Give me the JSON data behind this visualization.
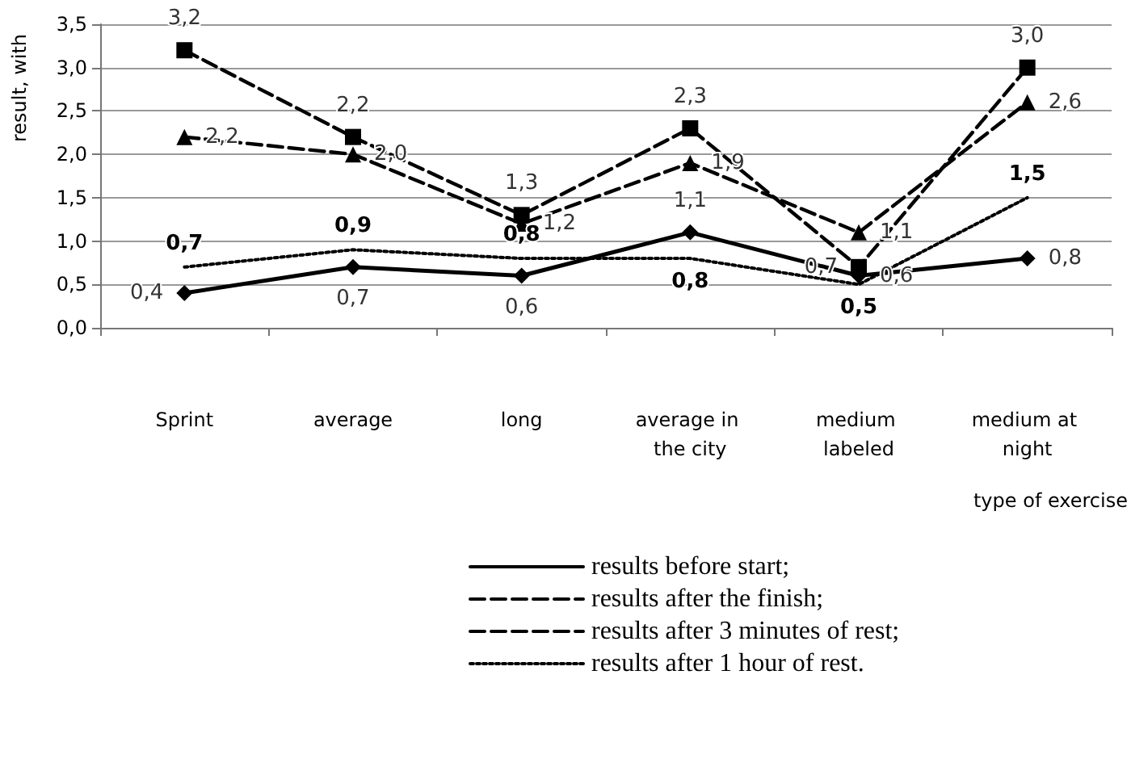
{
  "chart_data": {
    "type": "line",
    "xlabel": "type of exercise",
    "ylabel": "result, with",
    "categories": [
      "Sprint",
      "average",
      "long",
      "average in the city",
      "medium labeled",
      "medium at night"
    ],
    "series": [
      {
        "name": "results before start;",
        "color": "#000000",
        "values": [
          0.4,
          0.7,
          0.6,
          1.1,
          0.6,
          0.8
        ],
        "marker": "diamond",
        "line_style": "solid",
        "value_labels": [
          "0,4",
          "0,7",
          "0,6",
          "1,1",
          "0,6",
          "0,8"
        ]
      },
      {
        "name": "results after the finish;",
        "color": "#000000",
        "values": [
          3.2,
          2.2,
          1.3,
          2.3,
          0.7,
          3.0
        ],
        "marker": "square",
        "line_style": "dashed",
        "value_labels": [
          "3,2",
          "2,2",
          "1,3",
          "2,3",
          "0,7",
          "3,0"
        ]
      },
      {
        "name": "results after 3 minutes of rest;",
        "color": "#000000",
        "values": [
          2.2,
          2.0,
          1.2,
          1.9,
          1.1,
          2.6
        ],
        "marker": "triangle",
        "line_style": "dashed",
        "value_labels": [
          "2,2",
          "2,0",
          "1,2",
          "1,9",
          "1,1",
          "2,6"
        ]
      },
      {
        "name": "results after 1 hour of rest.",
        "color": "#000000",
        "values": [
          0.7,
          0.9,
          0.8,
          0.8,
          0.5,
          1.5
        ],
        "marker": "none",
        "line_style": "dotted",
        "value_labels": [
          "0,7",
          "0,9",
          "0,8",
          "0,8",
          "0,5",
          "1,5"
        ]
      }
    ],
    "ylim": [
      0,
      3.5
    ],
    "yticks": [
      {
        "value": 0,
        "label": "0,0"
      },
      {
        "value": 0.5,
        "label": "0,5"
      },
      {
        "value": 1,
        "label": "1,0"
      },
      {
        "value": 1.5,
        "label": "1,5"
      },
      {
        "value": 2,
        "label": "2,0"
      },
      {
        "value": 2.5,
        "label": "2,5"
      },
      {
        "value": 3,
        "label": "3,0"
      },
      {
        "value": 3.5,
        "label": "3,5"
      }
    ],
    "grid": "y",
    "legend": "bottom"
  }
}
